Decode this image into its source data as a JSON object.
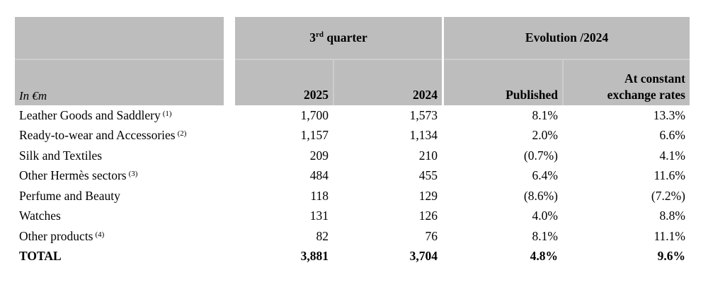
{
  "table": {
    "unit_label": "In €m",
    "header": {
      "quarter_group_base": "3",
      "quarter_group_sup": "rd",
      "quarter_group_rest": " quarter",
      "evolution_group": "Evolution /2024",
      "col_2025": "2025",
      "col_2024": "2024",
      "col_published": "Published",
      "col_constant": "At constant\nexchange rates"
    },
    "rows": [
      {
        "label": "Leather Goods and Saddlery",
        "footnote": "(1)",
        "v2025": "1,700",
        "v2024": "1,573",
        "published": "8.1%",
        "constant": "13.3%"
      },
      {
        "label": "Ready-to-wear and Accessories",
        "footnote": "(2)",
        "v2025": "1,157",
        "v2024": "1,134",
        "published": "2.0%",
        "constant": "6.6%"
      },
      {
        "label": "Silk and Textiles",
        "footnote": "",
        "v2025": "209",
        "v2024": "210",
        "published": "(0.7%)",
        "constant": "4.1%"
      },
      {
        "label": "Other Hermès sectors",
        "footnote": "(3)",
        "v2025": "484",
        "v2024": "455",
        "published": "6.4%",
        "constant": "11.6%"
      },
      {
        "label": "Perfume and Beauty",
        "footnote": "",
        "v2025": "118",
        "v2024": "129",
        "published": "(8.6%)",
        "constant": "(7.2%)"
      },
      {
        "label": "Watches",
        "footnote": "",
        "v2025": "131",
        "v2024": "126",
        "published": "4.0%",
        "constant": "8.8%"
      },
      {
        "label": "Other products",
        "footnote": "(4)",
        "v2025": "82",
        "v2024": "76",
        "published": "8.1%",
        "constant": "11.1%"
      }
    ],
    "total": {
      "label": "TOTAL",
      "v2025": "3,881",
      "v2024": "3,704",
      "published": "4.8%",
      "constant": "9.6%"
    },
    "colors": {
      "header_bg": "#bdbdbd",
      "header_divider": "#cdcdcd",
      "text": "#000000",
      "background": "#ffffff"
    }
  }
}
